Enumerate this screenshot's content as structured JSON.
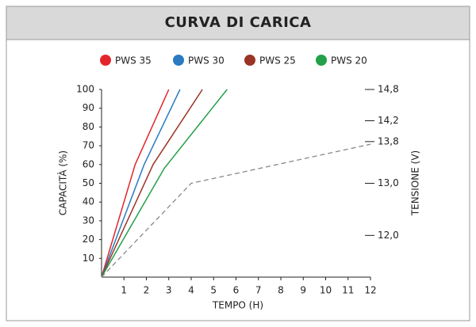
{
  "chart_data": {
    "type": "line",
    "title": "CURVA DI CARICA",
    "xlabel": "TEMPO (H)",
    "ylabel": "CAPACITÀ (%)",
    "y2label": "TENSIONE (V)",
    "xlim": [
      0,
      12
    ],
    "xticks": [
      1,
      2,
      3,
      4,
      5,
      6,
      7,
      8,
      9,
      10,
      11,
      12
    ],
    "ylim": [
      0,
      100
    ],
    "yticks": [
      10,
      20,
      30,
      40,
      50,
      60,
      70,
      80,
      90,
      100
    ],
    "y2lim": [
      11.2,
      14.8
    ],
    "y2ticks": [
      {
        "value": 14.8,
        "label": "14,8"
      },
      {
        "value": 14.2,
        "label": "14,2"
      },
      {
        "value": 13.8,
        "label": "13,8"
      },
      {
        "value": 13.0,
        "label": "13,0"
      },
      {
        "value": 12.0,
        "label": "12,0"
      }
    ],
    "series": [
      {
        "name": "PWS 35",
        "color": "#e3262b",
        "x": [
          0,
          1.5,
          3
        ],
        "values": [
          0,
          60,
          100
        ]
      },
      {
        "name": "PWS 30",
        "color": "#2a7bc1",
        "x": [
          0,
          1.9,
          3.5
        ],
        "values": [
          0,
          60,
          100
        ]
      },
      {
        "name": "PWS 25",
        "color": "#9b3426",
        "x": [
          0,
          2.3,
          4.5
        ],
        "values": [
          0,
          60,
          100
        ]
      },
      {
        "name": "PWS 20",
        "color": "#23a04a",
        "x": [
          0,
          2.8,
          5.6
        ],
        "values": [
          0,
          58,
          100
        ]
      }
    ],
    "voltage": {
      "color": "#888888",
      "axis": "y2",
      "x": [
        0,
        4,
        12
      ],
      "values": [
        11.2,
        13.0,
        13.75
      ]
    }
  }
}
